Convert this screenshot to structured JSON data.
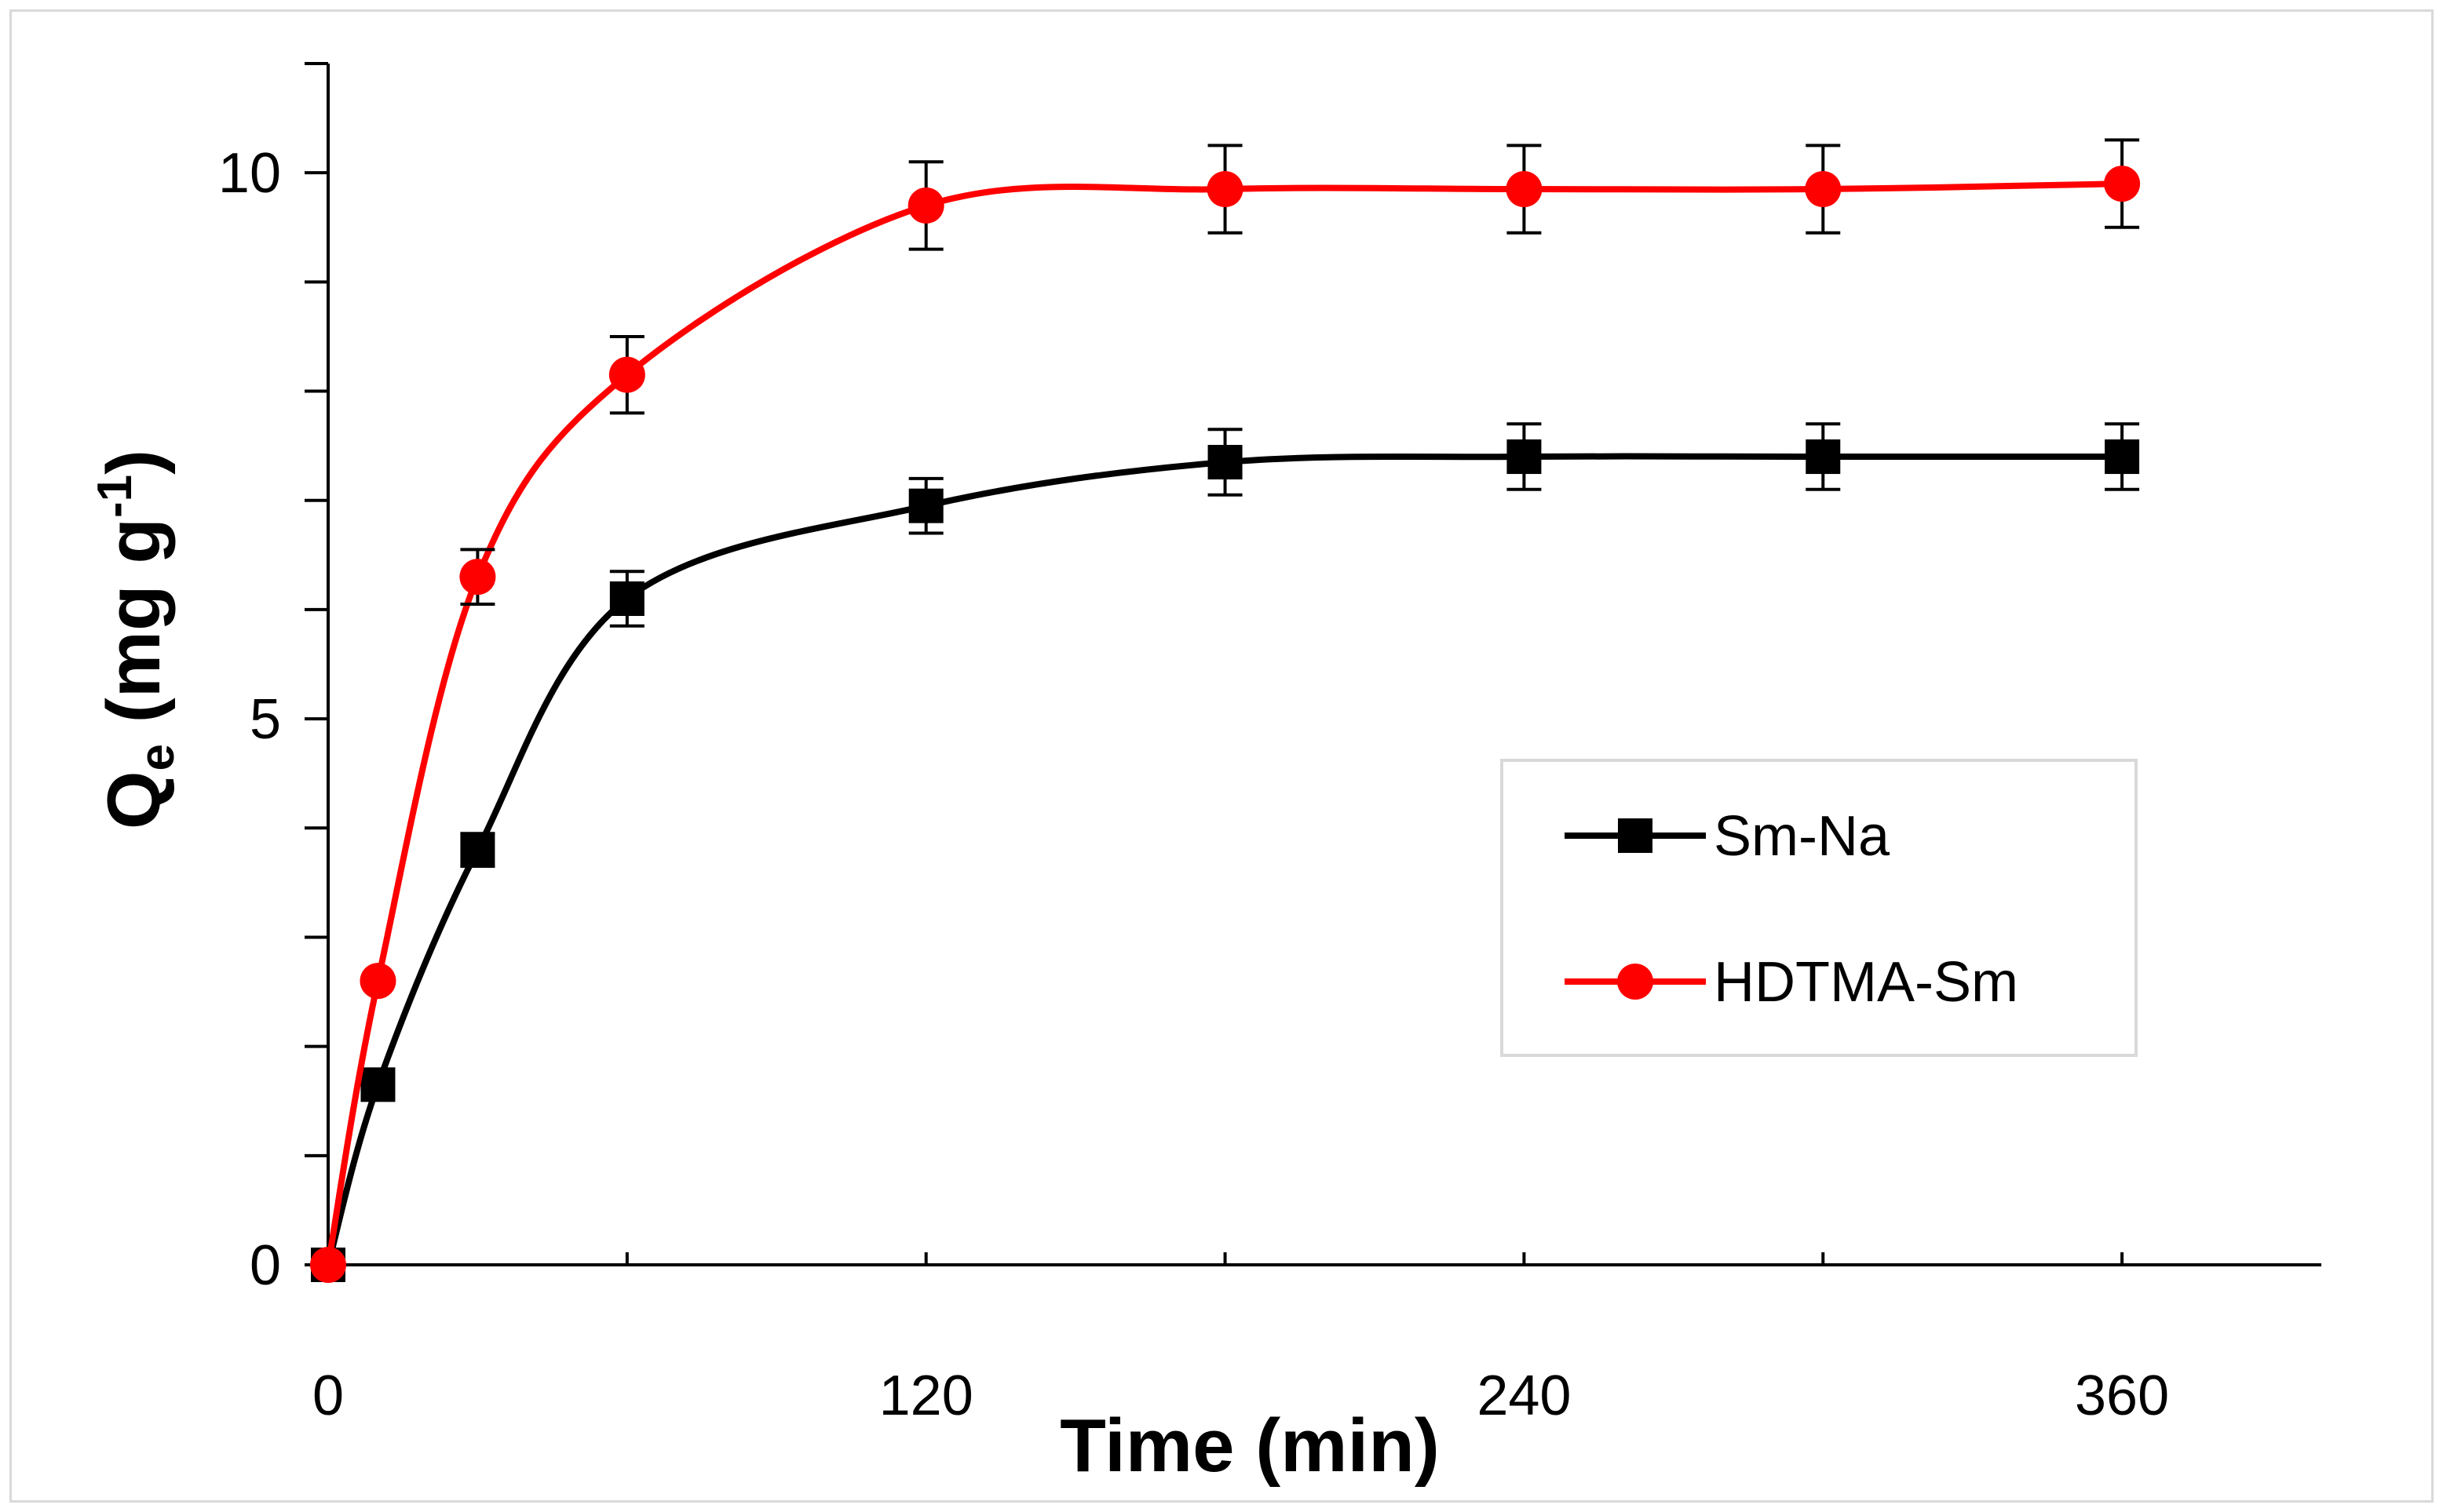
{
  "chart_data": {
    "type": "line",
    "title": "",
    "xlabel": "Time (min)",
    "ylabel": {
      "main": "Q",
      "sub": "e",
      "units": " (mg g",
      "sup": "-1",
      "close": ")"
    },
    "xlim": [
      0,
      400
    ],
    "ylim": [
      0,
      11
    ],
    "x_major_ticks": [
      0,
      120,
      240,
      360
    ],
    "x_minor_ticks": [
      60,
      180,
      300
    ],
    "x_tick_labels": [
      "0",
      "120",
      "240",
      "360"
    ],
    "y_ticks": [
      0,
      1,
      2,
      3,
      4,
      5,
      6,
      7,
      8,
      9,
      10,
      11
    ],
    "y_tick_labels": [
      {
        "value": 0,
        "label": "0"
      },
      {
        "value": 5,
        "label": "5"
      },
      {
        "value": 10,
        "label": "10"
      }
    ],
    "grid": false,
    "legend_position": "right-middle",
    "series": [
      {
        "name": "Sm-Na",
        "color": "#000000",
        "marker": "square",
        "x": [
          0,
          10,
          30,
          60,
          120,
          180,
          240,
          300,
          360
        ],
        "y": [
          0,
          1.65,
          3.8,
          6.1,
          6.95,
          7.35,
          7.4,
          7.4,
          7.4
        ],
        "error": [
          0,
          0,
          0.15,
          0.25,
          0.25,
          0.3,
          0.3,
          0.3,
          0.3
        ]
      },
      {
        "name": "HDTMA-Sm",
        "color": "#ff0000",
        "marker": "circle",
        "x": [
          0,
          10,
          30,
          60,
          120,
          180,
          240,
          300,
          360
        ],
        "y": [
          0,
          2.6,
          6.3,
          8.15,
          9.7,
          9.85,
          9.85,
          9.85,
          9.9
        ],
        "error": [
          0,
          0,
          0.25,
          0.35,
          0.4,
          0.4,
          0.4,
          0.4,
          0.4
        ]
      }
    ]
  }
}
